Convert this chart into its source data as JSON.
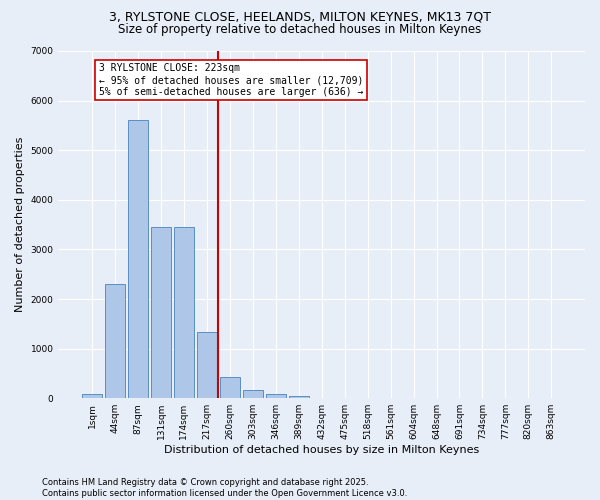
{
  "title_line1": "3, RYLSTONE CLOSE, HEELANDS, MILTON KEYNES, MK13 7QT",
  "title_line2": "Size of property relative to detached houses in Milton Keynes",
  "xlabel": "Distribution of detached houses by size in Milton Keynes",
  "ylabel": "Number of detached properties",
  "footer_line1": "Contains HM Land Registry data © Crown copyright and database right 2025.",
  "footer_line2": "Contains public sector information licensed under the Open Government Licence v3.0.",
  "categories": [
    "1sqm",
    "44sqm",
    "87sqm",
    "131sqm",
    "174sqm",
    "217sqm",
    "260sqm",
    "303sqm",
    "346sqm",
    "389sqm",
    "432sqm",
    "475sqm",
    "518sqm",
    "561sqm",
    "604sqm",
    "648sqm",
    "691sqm",
    "734sqm",
    "777sqm",
    "820sqm",
    "863sqm"
  ],
  "values": [
    80,
    2300,
    5600,
    3450,
    3450,
    1330,
    430,
    175,
    90,
    50,
    0,
    0,
    0,
    0,
    0,
    0,
    0,
    0,
    0,
    0,
    0
  ],
  "bar_color": "#aec6e8",
  "bar_edgecolor": "#5a8fc2",
  "vline_color": "#cc0000",
  "vline_label_line1": "3 RYLSTONE CLOSE: 223sqm",
  "vline_label_line2": "← 95% of detached houses are smaller (12,709)",
  "vline_label_line3": "5% of semi-detached houses are larger (636) →",
  "annotation_box_edgecolor": "#cc0000",
  "ylim": [
    0,
    7000
  ],
  "yticks": [
    0,
    1000,
    2000,
    3000,
    4000,
    5000,
    6000,
    7000
  ],
  "bg_color": "#e8eef8",
  "plot_bg_color": "#e8eef8",
  "grid_color": "#ffffff",
  "title_fontsize": 9,
  "subtitle_fontsize": 8.5,
  "axis_label_fontsize": 8,
  "tick_fontsize": 6.5,
  "footer_fontsize": 6,
  "annotation_fontsize": 7
}
